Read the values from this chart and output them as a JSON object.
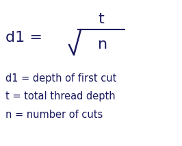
{
  "background_color": "#ffffff",
  "text_color": "#1a1a5e",
  "formula_label": "d1 =",
  "numerator": "t",
  "denominator": "n",
  "description_lines": [
    "d1 = depth of first cut",
    "t = total thread depth",
    "n = number of cuts"
  ],
  "formula_fontsize": 16,
  "desc_fontsize": 10.5,
  "fig_width": 2.66,
  "fig_height": 2.13,
  "dpi": 100
}
